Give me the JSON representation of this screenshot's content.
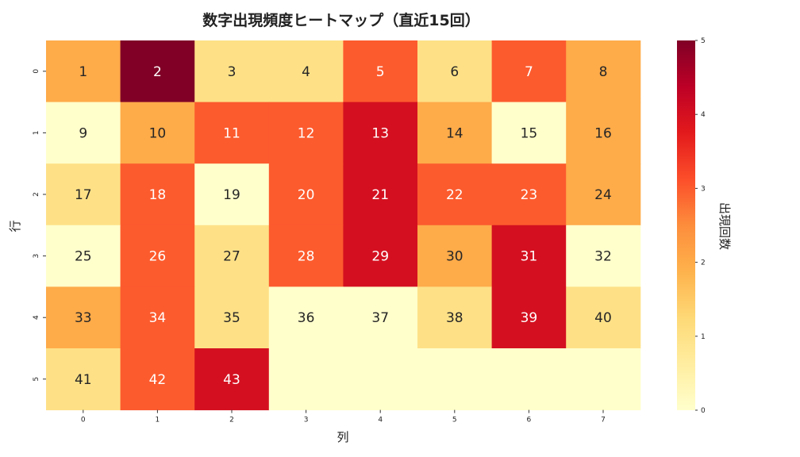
{
  "chart_data": {
    "type": "heatmap",
    "title": "数字出現頻度ヒートマップ（直近15回）",
    "xlabel": "列",
    "ylabel": "行",
    "x_ticks": [
      "0",
      "1",
      "2",
      "3",
      "4",
      "5",
      "6",
      "7"
    ],
    "y_ticks": [
      "0",
      "1",
      "2",
      "3",
      "4",
      "5"
    ],
    "cell_numbers": [
      [
        "1",
        "2",
        "3",
        "4",
        "5",
        "6",
        "7",
        "8"
      ],
      [
        "9",
        "10",
        "11",
        "12",
        "13",
        "14",
        "15",
        "16"
      ],
      [
        "17",
        "18",
        "19",
        "20",
        "21",
        "22",
        "23",
        "24"
      ],
      [
        "25",
        "26",
        "27",
        "28",
        "29",
        "30",
        "31",
        "32"
      ],
      [
        "33",
        "34",
        "35",
        "36",
        "37",
        "38",
        "39",
        "40"
      ],
      [
        "41",
        "42",
        "43",
        "",
        "",
        "",
        "",
        ""
      ]
    ],
    "values": [
      [
        2,
        5,
        1,
        1,
        3,
        1,
        3,
        2
      ],
      [
        0,
        2,
        3,
        3,
        4,
        2,
        0,
        2
      ],
      [
        1,
        3,
        0,
        3,
        4,
        3,
        3,
        2
      ],
      [
        0,
        3,
        1,
        3,
        4,
        2,
        4,
        0
      ],
      [
        2,
        3,
        1,
        0,
        0,
        1,
        4,
        1
      ],
      [
        1,
        3,
        4,
        0,
        0,
        0,
        0,
        0
      ]
    ],
    "colorbar": {
      "label": "出現回数",
      "range": [
        0,
        5
      ],
      "ticks": [
        "0",
        "1",
        "2",
        "3",
        "4",
        "5"
      ],
      "colormap": "YlOrRd"
    }
  }
}
